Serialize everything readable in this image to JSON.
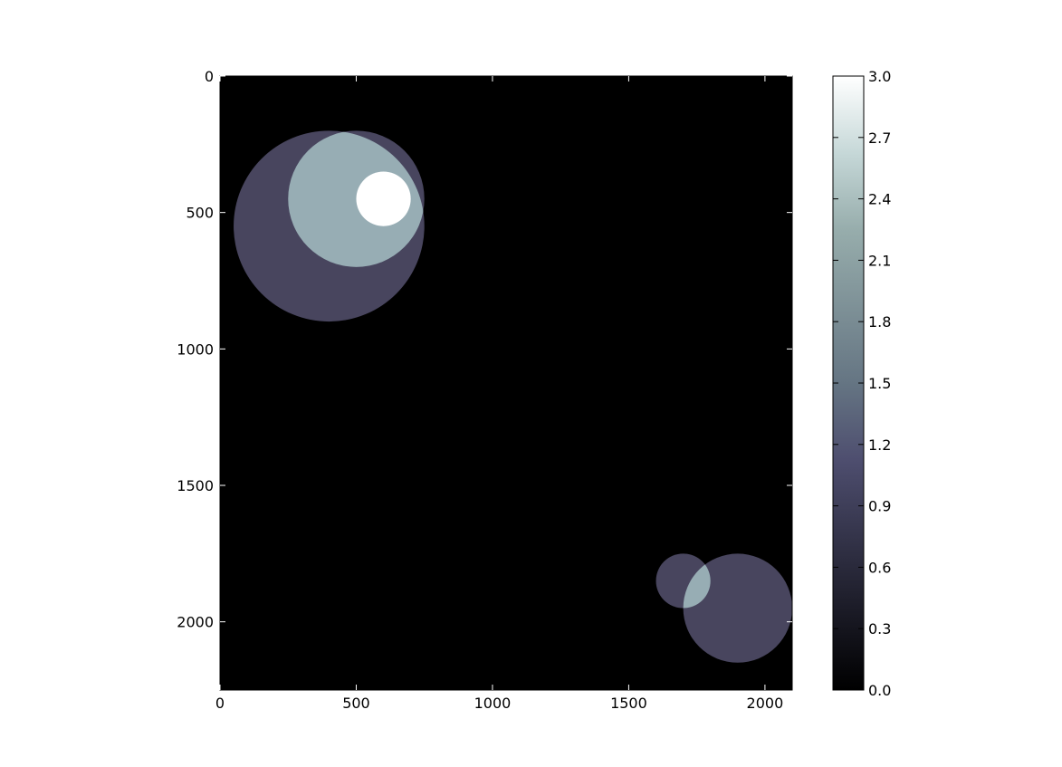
{
  "chart_data": {
    "type": "heatmap",
    "title": "",
    "xlabel": "",
    "ylabel": "",
    "xlim": [
      0,
      2100
    ],
    "ylim": [
      2250,
      0
    ],
    "y_axis_inverted": true,
    "x_ticks": [
      0,
      500,
      1000,
      1500,
      2000
    ],
    "y_ticks": [
      0,
      500,
      1000,
      1500,
      2000
    ],
    "grid": false,
    "background_value": 0,
    "colormap": "bone",
    "colorbar": {
      "min": 0.0,
      "max": 3.0,
      "ticks": [
        "0.0",
        "0.3",
        "0.6",
        "0.9",
        "1.2",
        "1.5",
        "1.8",
        "2.1",
        "2.4",
        "2.7",
        "3.0"
      ]
    },
    "circles": [
      {
        "cx": 400,
        "cy": 550,
        "r": 350,
        "value": 1
      },
      {
        "cx": 500,
        "cy": 450,
        "r": 250,
        "value": 1
      },
      {
        "cx": 600,
        "cy": 450,
        "r": 100,
        "value": 1
      },
      {
        "cx": 1700,
        "cy": 1850,
        "r": 100,
        "value": 1
      },
      {
        "cx": 1900,
        "cy": 1950,
        "r": 200,
        "value": 1
      }
    ],
    "colors": {
      "level_0": "#000000",
      "level_1": "#48455e",
      "level_2": "#97adb4",
      "level_3": "#ffffff"
    }
  }
}
